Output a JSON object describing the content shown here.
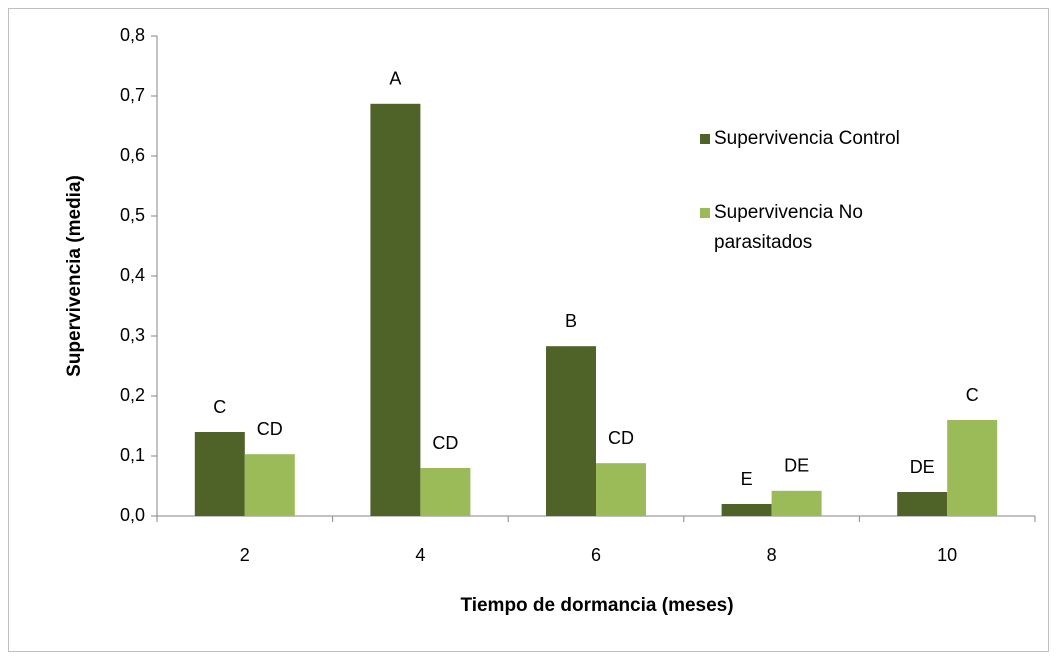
{
  "chart_data": {
    "type": "bar",
    "xlabel": "Tiempo de dormancia (meses)",
    "ylabel": "Supervivencia (media)",
    "categories": [
      "2",
      "4",
      "6",
      "8",
      "10"
    ],
    "series": [
      {
        "name": "Supervivencia Control",
        "color": "#4f6228",
        "values": [
          0.14,
          0.687,
          0.283,
          0.02,
          0.04
        ],
        "letters": [
          "C",
          "A",
          "B",
          "E",
          "DE"
        ]
      },
      {
        "name": "Supervivencia No parasitados",
        "color": "#9bbb59",
        "values": [
          0.103,
          0.08,
          0.088,
          0.042,
          0.16
        ],
        "letters": [
          "CD",
          "CD",
          "CD",
          "DE",
          "C"
        ]
      }
    ],
    "ylim": [
      0,
      0.8
    ],
    "yticks": [
      {
        "value": 0,
        "label": "0,0"
      },
      {
        "value": 0.1,
        "label": "0,1"
      },
      {
        "value": 0.2,
        "label": "0,2"
      },
      {
        "value": 0.3,
        "label": "0,3"
      },
      {
        "value": 0.4,
        "label": "0,4"
      },
      {
        "value": 0.5,
        "label": "0,5"
      },
      {
        "value": 0.6,
        "label": "0,6"
      },
      {
        "value": 0.7,
        "label": "0,7"
      },
      {
        "value": 0.8,
        "label": "0,8"
      }
    ],
    "grid": false,
    "legend": "right"
  }
}
